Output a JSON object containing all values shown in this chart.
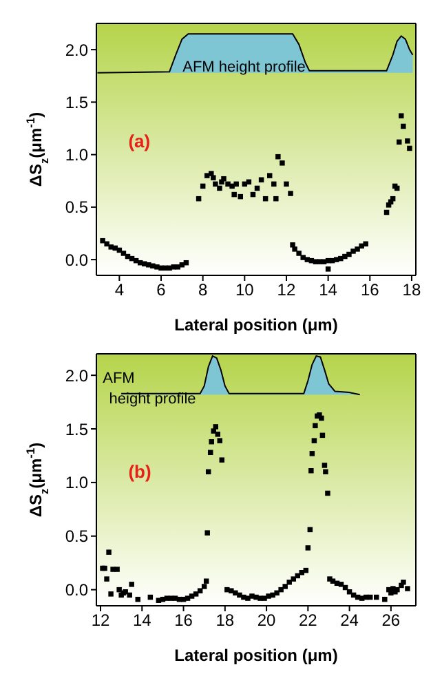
{
  "chart_data": [
    {
      "type": "scatter",
      "xlabel": "Lateral position (μm)",
      "ylabel": "ΔS$_{z}$(μm$^{-1}$)",
      "annotations": [
        "(a)",
        "AFM height profile"
      ],
      "xlim": [
        2.9,
        18.2
      ],
      "xticks": [
        4,
        6,
        8,
        10,
        12,
        14,
        16,
        18
      ],
      "ylim": [
        -0.15,
        2.25
      ],
      "yticks": [
        {
          "value": 0,
          "label": "0.0"
        },
        {
          "value": 0.5,
          "label": "0.5"
        },
        {
          "value": 1,
          "label": "1.0"
        },
        {
          "value": 1.5,
          "label": "1.5"
        },
        {
          "value": 2,
          "label": "2.0"
        }
      ],
      "series": [
        {
          "type": "area",
          "color": "#7fc6d4",
          "x": [
            2.95,
            6.4,
            6.7,
            7.0,
            7.3,
            12.3,
            12.6,
            12.9,
            13.1,
            16.8,
            17.1,
            17.3,
            17.5,
            17.7,
            17.9,
            18.05
          ],
          "values": [
            1.78,
            1.79,
            1.95,
            2.1,
            2.15,
            2.15,
            2.05,
            1.88,
            1.8,
            1.8,
            1.95,
            2.08,
            2.13,
            2.1,
            2.0,
            1.95
          ]
        },
        {
          "marker": "square",
          "color": "#000000",
          "x": [
            3.2,
            3.4,
            3.6,
            3.8,
            4.0,
            4.2,
            4.4,
            4.6,
            4.8,
            5.0,
            5.2,
            5.4,
            5.6,
            5.8,
            6.0,
            6.2,
            6.4,
            6.6,
            6.8,
            7.0,
            7.2,
            7.8,
            8.0,
            8.2,
            8.4,
            8.5,
            8.6,
            8.8,
            8.9,
            9.0,
            9.2,
            9.4,
            9.5,
            9.6,
            9.8,
            10.0,
            10.2,
            10.4,
            10.6,
            10.8,
            11.0,
            11.2,
            11.4,
            11.5,
            11.6,
            11.8,
            12.0,
            12.2,
            12.3,
            12.4,
            12.6,
            12.8,
            13.0,
            13.2,
            13.4,
            13.6,
            13.8,
            14.0,
            14.2,
            14.4,
            14.6,
            14.8,
            15.0,
            15.2,
            15.4,
            15.6,
            15.8,
            14.0,
            16.8,
            16.9,
            17.0,
            17.1,
            17.2,
            17.3,
            17.4,
            17.5,
            17.6,
            17.8,
            17.9
          ],
          "values": [
            0.18,
            0.15,
            0.12,
            0.11,
            0.09,
            0.06,
            0.03,
            0.01,
            -0.01,
            -0.03,
            -0.04,
            -0.05,
            -0.06,
            -0.07,
            -0.08,
            -0.08,
            -0.08,
            -0.07,
            -0.07,
            -0.05,
            -0.03,
            0.58,
            0.7,
            0.8,
            0.82,
            0.78,
            0.72,
            0.68,
            0.74,
            0.77,
            0.72,
            0.7,
            0.62,
            0.72,
            0.6,
            0.72,
            0.74,
            0.62,
            0.68,
            0.76,
            0.58,
            0.8,
            0.72,
            0.58,
            0.98,
            0.92,
            0.72,
            0.63,
            0.14,
            0.1,
            0.06,
            0.02,
            0.0,
            -0.01,
            -0.02,
            -0.02,
            -0.02,
            -0.01,
            -0.01,
            0.0,
            0.01,
            0.03,
            0.05,
            0.08,
            0.1,
            0.13,
            0.15,
            -0.09,
            0.45,
            0.52,
            0.55,
            0.58,
            0.7,
            0.68,
            1.12,
            1.37,
            1.27,
            1.13,
            1.06
          ]
        }
      ]
    },
    {
      "type": "scatter",
      "xlabel": "Lateral position (μm)",
      "ylabel": "ΔS$_{z}$(μm$^{-1}$)",
      "annotations": [
        "(b)",
        "AFM",
        "height profile"
      ],
      "xlim": [
        11.8,
        27.2
      ],
      "xticks": [
        12,
        14,
        16,
        18,
        20,
        22,
        24,
        26
      ],
      "ylim": [
        -0.15,
        2.2
      ],
      "yticks": [
        {
          "value": 0,
          "label": "0.0"
        },
        {
          "value": 0.5,
          "label": "0.5"
        },
        {
          "value": 1,
          "label": "1.0"
        },
        {
          "value": 1.5,
          "label": "1.5"
        },
        {
          "value": 2,
          "label": "2.0"
        }
      ],
      "series": [
        {
          "type": "area",
          "color": "#7fc6d4",
          "x": [
            13.0,
            16.8,
            17.0,
            17.2,
            17.4,
            17.6,
            17.8,
            18.0,
            18.2,
            21.8,
            22.0,
            22.2,
            22.4,
            22.6,
            22.8,
            23.0,
            23.3,
            24.0,
            24.5
          ],
          "values": [
            1.83,
            1.83,
            1.9,
            2.08,
            2.18,
            2.16,
            2.05,
            1.9,
            1.83,
            1.83,
            1.95,
            2.1,
            2.18,
            2.17,
            2.05,
            1.92,
            1.85,
            1.84,
            1.82
          ]
        },
        {
          "marker": "square",
          "color": "#000000",
          "x": [
            12.1,
            12.2,
            12.3,
            12.4,
            12.5,
            12.6,
            12.8,
            12.9,
            13.0,
            13.1,
            13.2,
            13.4,
            13.5,
            13.8,
            14.4,
            14.8,
            15.0,
            15.2,
            15.4,
            15.6,
            15.8,
            16.0,
            16.2,
            16.4,
            16.6,
            16.8,
            17.0,
            17.1,
            17.15,
            17.2,
            17.3,
            17.35,
            17.45,
            17.55,
            17.65,
            17.75,
            17.85,
            18.1,
            18.3,
            18.5,
            18.7,
            18.9,
            19.1,
            19.3,
            19.5,
            19.7,
            19.9,
            20.1,
            20.3,
            20.5,
            20.7,
            20.9,
            21.1,
            21.3,
            21.5,
            21.7,
            21.9,
            22.0,
            22.1,
            22.15,
            22.2,
            22.3,
            22.35,
            22.45,
            22.55,
            22.65,
            22.7,
            22.8,
            22.85,
            22.95,
            23.05,
            23.2,
            23.4,
            23.6,
            23.8,
            24.0,
            24.2,
            24.4,
            24.6,
            24.8,
            25.0,
            25.3,
            25.7,
            25.9,
            26.0,
            26.1,
            26.2,
            26.3,
            26.5,
            26.6,
            26.8
          ],
          "values": [
            0.2,
            0.2,
            0.1,
            0.35,
            -0.04,
            0.19,
            0.19,
            0.0,
            -0.05,
            -0.03,
            -0.02,
            -0.05,
            0.05,
            -0.09,
            -0.07,
            -0.1,
            -0.09,
            -0.08,
            -0.08,
            -0.08,
            -0.09,
            -0.09,
            -0.08,
            -0.06,
            -0.04,
            -0.01,
            0.03,
            0.08,
            0.53,
            1.1,
            1.28,
            1.38,
            1.48,
            1.52,
            1.45,
            1.39,
            1.21,
            0.0,
            -0.01,
            -0.03,
            -0.05,
            -0.07,
            -0.08,
            -0.06,
            -0.07,
            -0.08,
            -0.08,
            -0.06,
            -0.05,
            -0.03,
            0.0,
            0.03,
            0.07,
            0.1,
            0.13,
            0.16,
            0.18,
            0.39,
            0.56,
            1.11,
            1.27,
            1.39,
            1.53,
            1.62,
            1.63,
            1.6,
            1.44,
            1.16,
            1.1,
            0.9,
            0.1,
            0.08,
            0.06,
            0.05,
            0.02,
            -0.02,
            -0.05,
            -0.07,
            -0.08,
            -0.07,
            -0.07,
            -0.07,
            -0.09,
            0.0,
            -0.03,
            0.01,
            -0.02,
            0.0,
            0.04,
            0.07,
            0.01
          ]
        }
      ]
    }
  ]
}
